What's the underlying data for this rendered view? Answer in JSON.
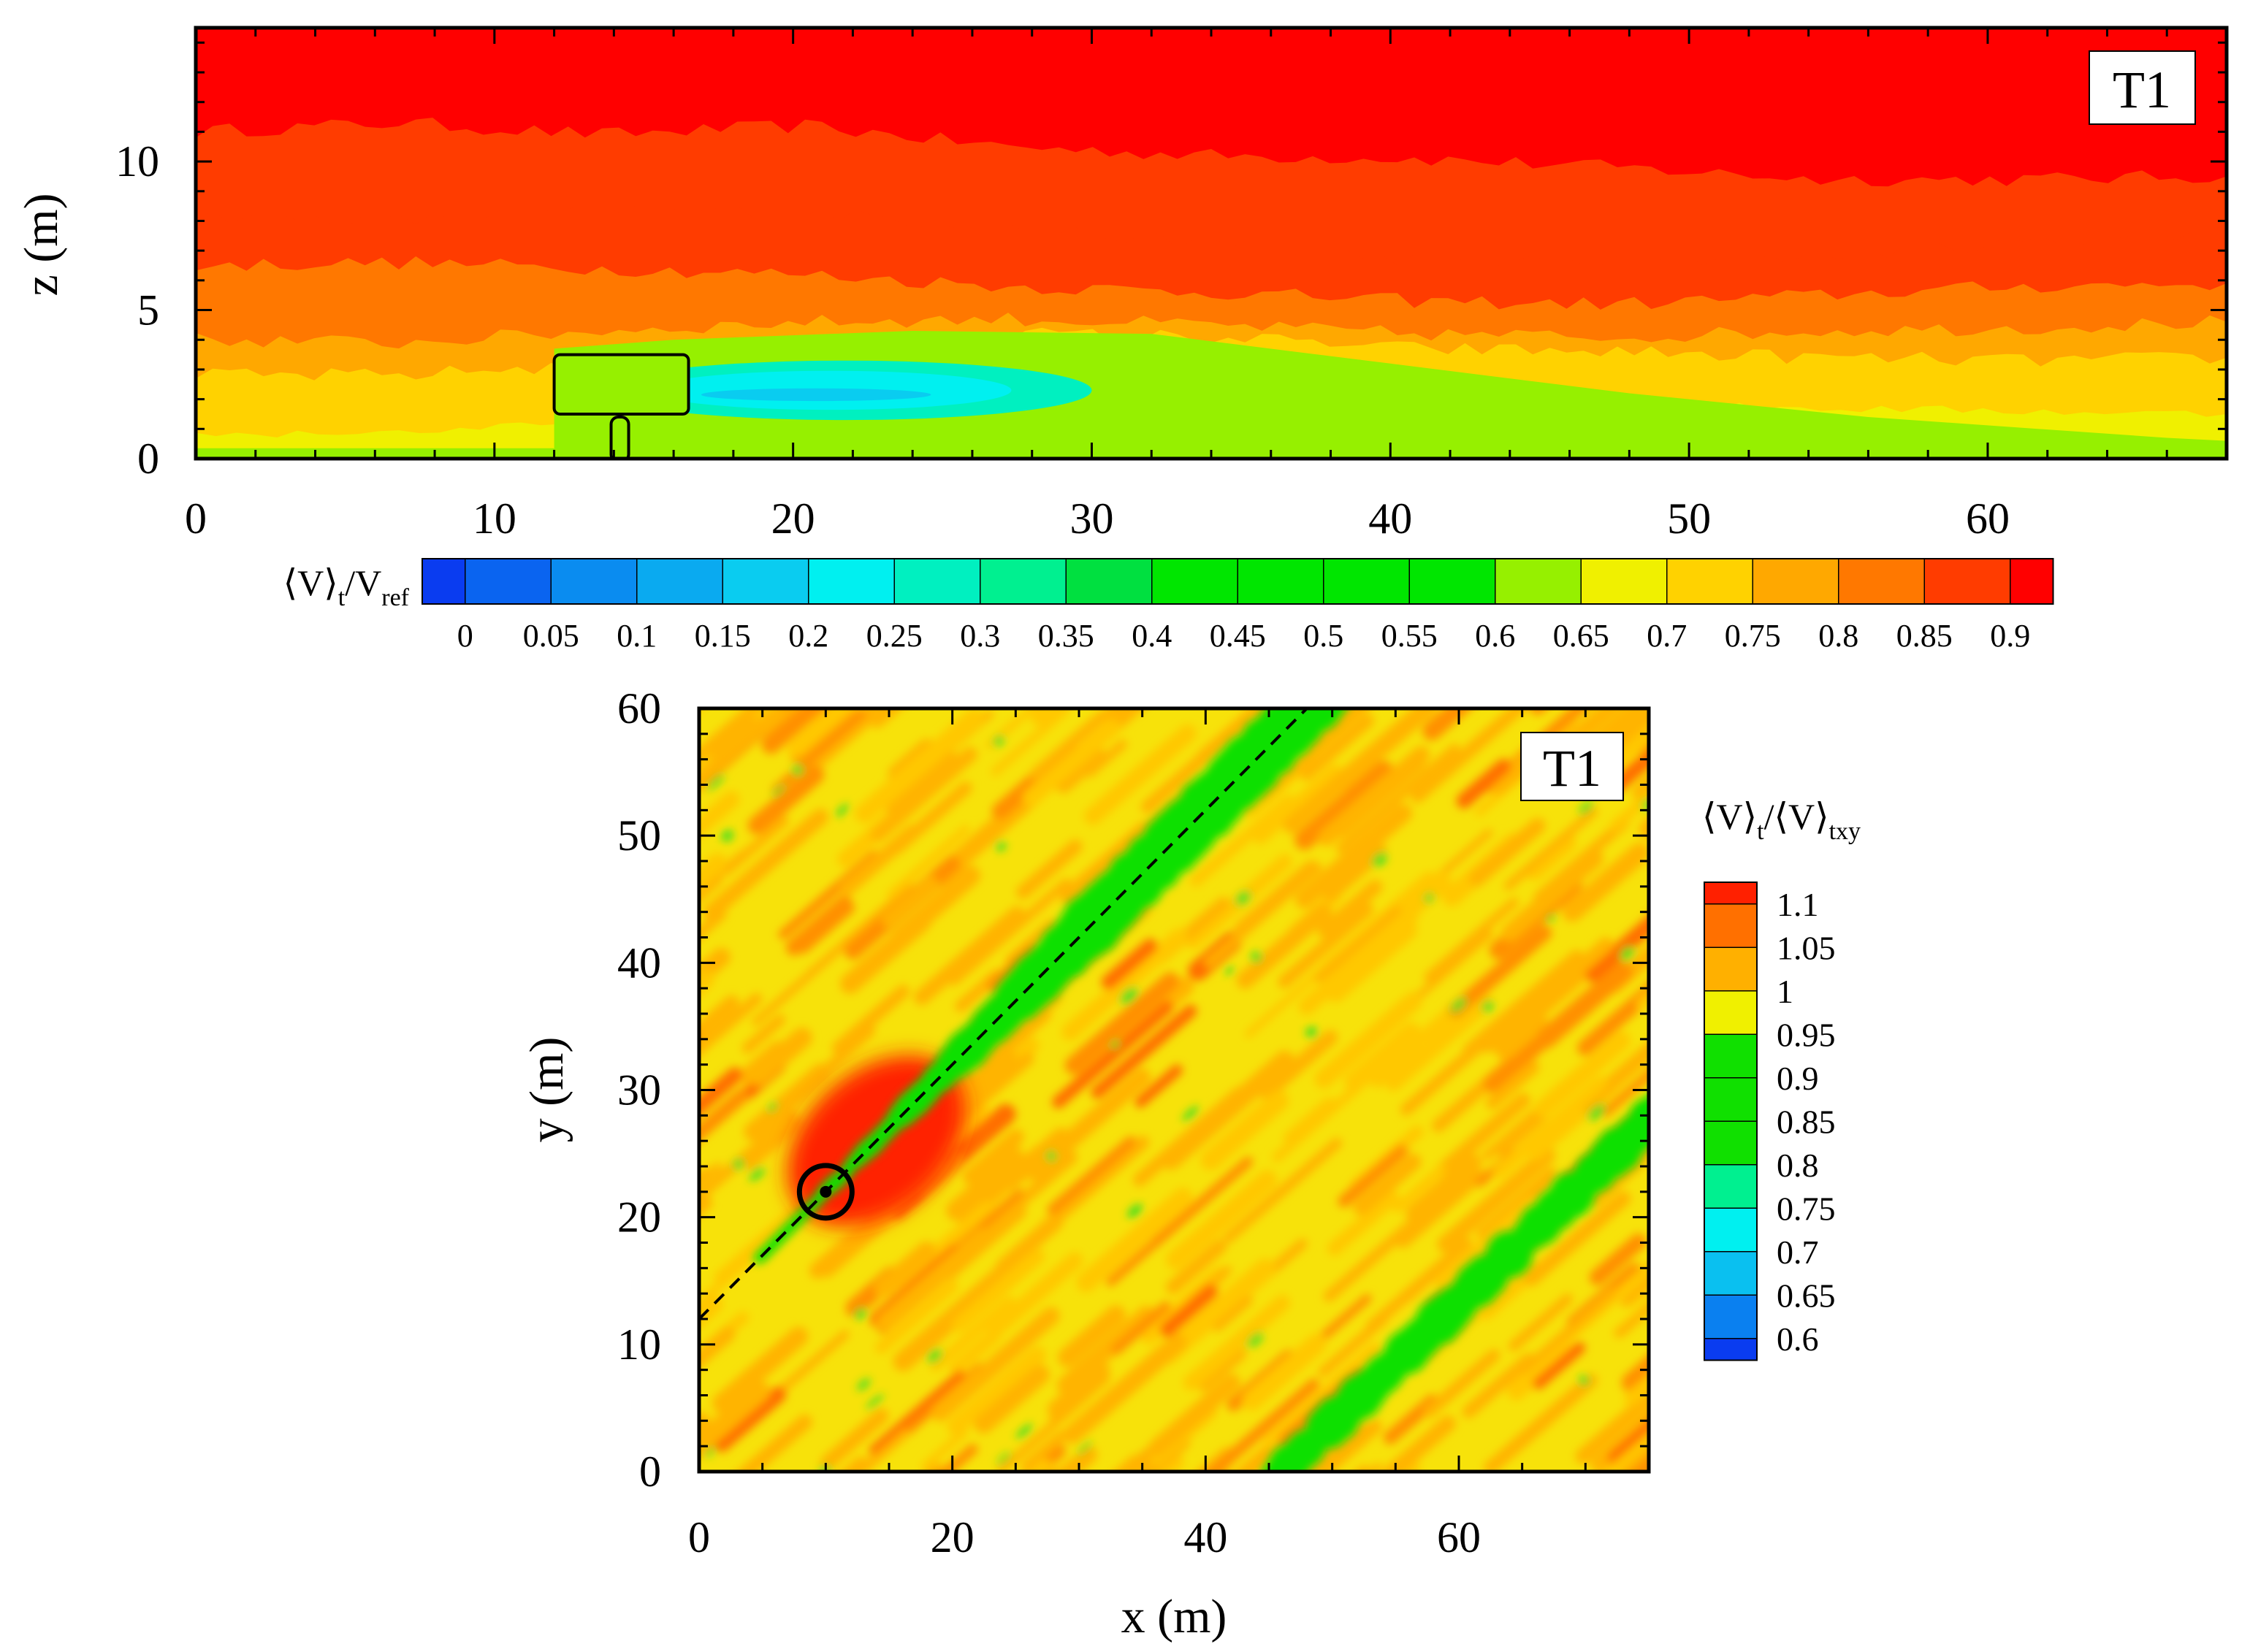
{
  "chart_data": [
    {
      "type": "heatmap",
      "title": "",
      "panel_label": "T1",
      "xlabel": "",
      "ylabel": "z (m)",
      "xlim": [
        0,
        68
      ],
      "ylim": [
        0,
        14.5
      ],
      "xticks": [
        0,
        10,
        20,
        30,
        40,
        50,
        60
      ],
      "yticks": [
        0,
        5,
        10
      ],
      "colorbar": {
        "title_main": "⟨V⟩",
        "title_sub1": "t",
        "title_mid": "/V",
        "title_sub2": "ref",
        "orientation": "horizontal",
        "levels": [
          0,
          0.05,
          0.1,
          0.15,
          0.2,
          0.25,
          0.3,
          0.35,
          0.4,
          0.45,
          0.5,
          0.55,
          0.6,
          0.65,
          0.7,
          0.75,
          0.8,
          0.85,
          0.9
        ],
        "colors": [
          "#0a3cf0",
          "#0a64f0",
          "#0a8cf0",
          "#0aaaf0",
          "#0accf0",
          "#00f0f0",
          "#00f0c0",
          "#00f090",
          "#00e040",
          "#00e600",
          "#00e600",
          "#00e600",
          "#00e600",
          "#96f000",
          "#f0f000",
          "#ffd200",
          "#ffa800",
          "#ff7800",
          "#ff3c00",
          "#ff0000"
        ]
      },
      "bands": [
        {
          "level": 0.9,
          "z": [
            11.0,
            11.3,
            10.9,
            11.2,
            10.5,
            10.2,
            10.1,
            9.8,
            9.4,
            9.4,
            9.5
          ]
        },
        {
          "level": 0.85,
          "z": [
            8.2,
            8.0,
            8.4,
            8.3,
            7.8,
            7.2,
            6.7,
            6.6,
            6.8,
            7.3,
            7.6
          ]
        },
        {
          "level": 0.8,
          "z": [
            6.5,
            6.6,
            6.4,
            6.2,
            5.8,
            5.6,
            5.3,
            5.2,
            5.5,
            5.8,
            5.9
          ]
        },
        {
          "level": 0.75,
          "z": [
            4.0,
            3.9,
            4.3,
            4.6,
            4.7,
            4.5,
            4.2,
            4.1,
            4.3,
            4.4,
            4.6
          ]
        },
        {
          "level": 0.7,
          "z": [
            2.8,
            2.8,
            3.2,
            3.8,
            4.2,
            4.1,
            3.7,
            3.6,
            3.4,
            3.3,
            3.4
          ]
        },
        {
          "level": 0.65,
          "z": [
            0.8,
            0.9,
            1.2,
            1.6,
            2.0,
            2.1,
            2.0,
            1.8,
            1.7,
            1.6,
            1.5
          ]
        }
      ],
      "wake_green": {
        "x": [
          12,
          16,
          24,
          32,
          40,
          48,
          56,
          66
        ],
        "z_top": [
          3.7,
          4.0,
          4.3,
          4.2,
          3.2,
          2.2,
          1.4,
          0.7
        ]
      },
      "wake_core": {
        "x_range": [
          15,
          31.5
        ],
        "z_range": [
          1.3,
          3.3
        ],
        "level": 0.2
      },
      "turbine": {
        "rotor_x": [
          12,
          16.5
        ],
        "rotor_z": [
          1.5,
          3.5
        ],
        "tower_x": 14.2
      }
    },
    {
      "type": "heatmap",
      "title": "",
      "panel_label": "T1",
      "xlabel": "x (m)",
      "ylabel": "y (m)",
      "xlim": [
        0,
        75
      ],
      "ylim": [
        0,
        60
      ],
      "xticks": [
        0,
        20,
        40,
        60
      ],
      "yticks": [
        0,
        10,
        20,
        30,
        40,
        50,
        60
      ],
      "colorbar": {
        "title_main": "⟨V⟩",
        "title_sub1": "t",
        "title_mid": "/⟨V⟩",
        "title_sub2": "txy",
        "orientation": "vertical",
        "labels": [
          1.1,
          1.05,
          1,
          0.95,
          0.9,
          0.85,
          0.8,
          0.75,
          0.7,
          0.65,
          0.6
        ],
        "colors": [
          "#ff2000",
          "#ff7000",
          "#ffb000",
          "#f0f000",
          "#10e000",
          "#10e000",
          "#10e000",
          "#00f090",
          "#00f0f0",
          "#0ac0f0",
          "#0a80f0",
          "#0a3cf0"
        ]
      },
      "turbine": {
        "x": 10,
        "y": 22
      },
      "wake_line": {
        "x": [
          0,
          48
        ],
        "y": [
          12,
          60
        ]
      },
      "background_level": 0.97
    }
  ]
}
